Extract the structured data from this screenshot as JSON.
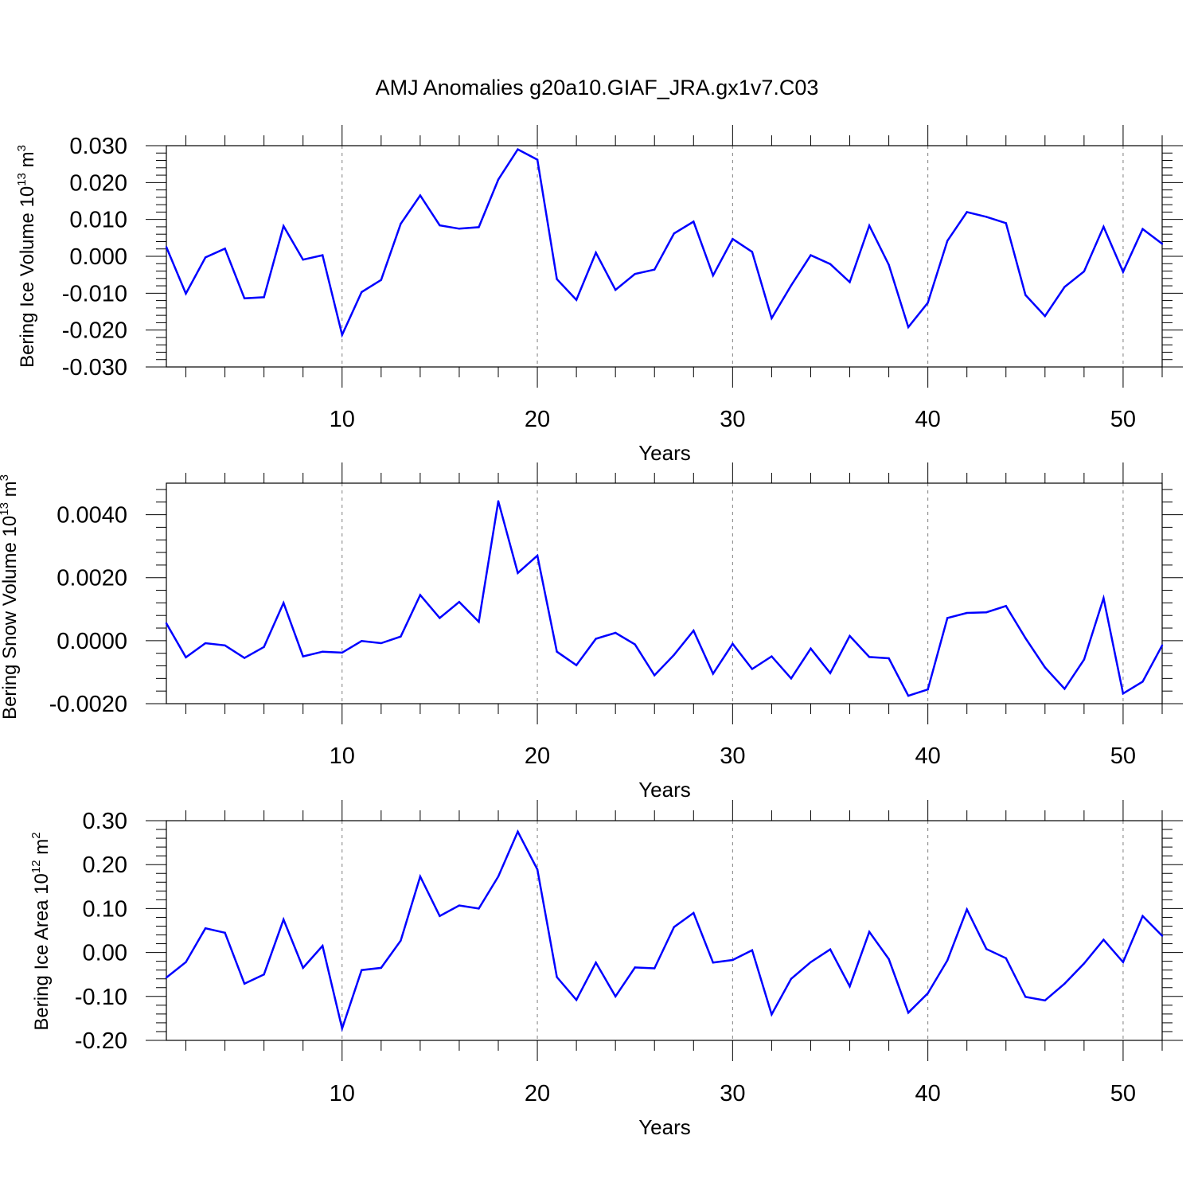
{
  "title": "AMJ Anomalies g20a10.GIAF_JRA.gx1v7.C03",
  "colors": {
    "series": "#0000ff",
    "axis": "#000000",
    "grid": "#808080"
  },
  "chart_data": [
    {
      "type": "line",
      "title": "AMJ Anomalies g20a10.GIAF_JRA.gx1v7.C03",
      "xlabel": "Years",
      "ylabel": {
        "text": "Bering Ice Volume 10",
        "exp": "13",
        "unit": " m",
        "unit_exp": "3"
      },
      "xlim": [
        1,
        52
      ],
      "ylim": [
        -0.03,
        0.03
      ],
      "xticks": [
        "10",
        "20",
        "30",
        "40",
        "50"
      ],
      "yticks": [
        "-0.030",
        "-0.020",
        "-0.010",
        "0.000",
        "0.010",
        "0.020",
        "0.030"
      ],
      "grid": "vertical dashed at x = 10, 20, 30, 40, 50",
      "x": [
        1,
        2,
        3,
        4,
        5,
        6,
        7,
        8,
        9,
        10,
        11,
        12,
        13,
        14,
        15,
        16,
        17,
        18,
        19,
        20,
        21,
        22,
        23,
        24,
        25,
        26,
        27,
        28,
        29,
        30,
        31,
        32,
        33,
        34,
        35,
        36,
        37,
        38,
        39,
        40,
        41,
        42,
        43,
        44,
        45,
        46,
        47,
        48,
        49,
        50,
        51,
        52
      ],
      "series": [
        {
          "values": [
            0.0025,
            -0.0101,
            -0.0003,
            0.0021,
            -0.0114,
            -0.0111,
            0.0082,
            -0.0009,
            0.0003,
            -0.0213,
            -0.0097,
            -0.0064,
            0.0088,
            0.0165,
            0.0084,
            0.0075,
            0.0079,
            0.0208,
            0.029,
            0.0262,
            -0.0062,
            -0.0118,
            0.001,
            -0.0091,
            -0.0048,
            -0.0036,
            0.0062,
            0.0094,
            -0.0052,
            0.0047,
            0.0012,
            -0.0168,
            -0.0079,
            0.0003,
            -0.0021,
            -0.007,
            0.0083,
            -0.0023,
            -0.0192,
            -0.0126,
            0.0042,
            0.012,
            0.0107,
            0.009,
            -0.0105,
            -0.0162,
            -0.0083,
            -0.0041,
            0.008,
            -0.0042,
            0.0074,
            0.0034
          ]
        }
      ]
    },
    {
      "type": "line",
      "xlabel": "Years",
      "ylabel": {
        "text": "Bering Snow Volume 10",
        "exp": "13",
        "unit": " m",
        "unit_exp": "3"
      },
      "xlim": [
        1,
        52
      ],
      "ylim": [
        -0.002,
        0.005
      ],
      "xticks": [
        "10",
        "20",
        "30",
        "40",
        "50"
      ],
      "yticks": [
        "-0.0020",
        "0.0000",
        "0.0020",
        "0.0040"
      ],
      "grid": "vertical dashed at x = 10, 20, 30, 40, 50",
      "x": [
        1,
        2,
        3,
        4,
        5,
        6,
        7,
        8,
        9,
        10,
        11,
        12,
        13,
        14,
        15,
        16,
        17,
        18,
        19,
        20,
        21,
        22,
        23,
        24,
        25,
        26,
        27,
        28,
        29,
        30,
        31,
        32,
        33,
        34,
        35,
        36,
        37,
        38,
        39,
        40,
        41,
        42,
        43,
        44,
        45,
        46,
        47,
        48,
        49,
        50,
        51,
        52
      ],
      "series": [
        {
          "values": [
            0.00055,
            -0.00053,
            -8e-05,
            -0.00015,
            -0.00055,
            -0.0002,
            0.0012,
            -0.0005,
            -0.00035,
            -0.00038,
            -1e-05,
            -8e-05,
            0.00013,
            0.00145,
            0.00072,
            0.00123,
            0.0006,
            0.00443,
            0.00215,
            0.0027,
            -0.00035,
            -0.00078,
            6e-05,
            0.00025,
            -0.00012,
            -0.0011,
            -0.00045,
            0.00032,
            -0.00105,
            -0.0001,
            -0.0009,
            -0.0005,
            -0.0012,
            -0.00025,
            -0.00103,
            0.00015,
            -0.00052,
            -0.00056,
            -0.00175,
            -0.00155,
            0.00072,
            0.00088,
            0.0009,
            0.0011,
            8e-05,
            -0.00085,
            -0.00153,
            -0.0006,
            0.00135,
            -0.00168,
            -0.0013,
            -0.00015
          ]
        }
      ]
    },
    {
      "type": "line",
      "xlabel": "Years",
      "ylabel": {
        "text": "Bering Ice Area 10",
        "exp": "12",
        "unit": " m",
        "unit_exp": "2"
      },
      "xlim": [
        1,
        52
      ],
      "ylim": [
        -0.2,
        0.3
      ],
      "xticks": [
        "10",
        "20",
        "30",
        "40",
        "50"
      ],
      "yticks": [
        "-0.20",
        "-0.10",
        "0.00",
        "0.10",
        "0.20",
        "0.30"
      ],
      "grid": "vertical dashed at x = 10, 20, 30, 40, 50",
      "x": [
        1,
        2,
        3,
        4,
        5,
        6,
        7,
        8,
        9,
        10,
        11,
        12,
        13,
        14,
        15,
        16,
        17,
        18,
        19,
        20,
        21,
        22,
        23,
        24,
        25,
        26,
        27,
        28,
        29,
        30,
        31,
        32,
        33,
        34,
        35,
        36,
        37,
        38,
        39,
        40,
        41,
        42,
        43,
        44,
        45,
        46,
        47,
        48,
        49,
        50,
        51,
        52
      ],
      "series": [
        {
          "values": [
            -0.057,
            -0.022,
            0.055,
            0.045,
            -0.071,
            -0.05,
            0.075,
            -0.035,
            0.015,
            -0.173,
            -0.04,
            -0.035,
            0.027,
            0.173,
            0.083,
            0.107,
            0.1,
            0.173,
            0.275,
            0.189,
            -0.056,
            -0.108,
            -0.023,
            -0.1,
            -0.034,
            -0.036,
            0.058,
            0.09,
            -0.023,
            -0.017,
            0.005,
            -0.141,
            -0.06,
            -0.022,
            0.007,
            -0.077,
            0.047,
            -0.015,
            -0.137,
            -0.093,
            -0.018,
            0.098,
            0.008,
            -0.013,
            -0.101,
            -0.109,
            -0.071,
            -0.025,
            0.029,
            -0.022,
            0.083,
            0.038
          ]
        }
      ]
    }
  ]
}
